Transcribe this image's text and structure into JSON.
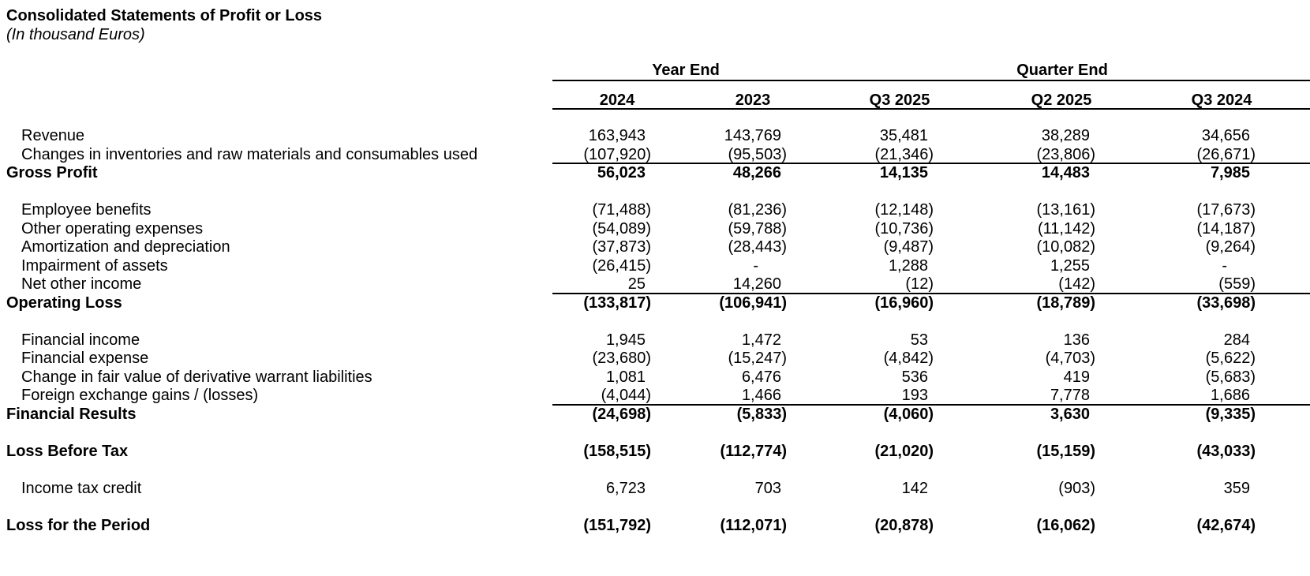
{
  "title": "Consolidated Statements of Profit or Loss",
  "subtitle": "(In thousand Euros)",
  "colors": {
    "text": "#000000",
    "background": "#ffffff",
    "rule": "#000000"
  },
  "table": {
    "column_groups": [
      {
        "label": "Year End",
        "span": 2
      },
      {
        "label": "Quarter End",
        "span": 3
      }
    ],
    "columns": [
      "2024",
      "2023",
      "Q3 2025",
      "Q2 2025",
      "Q3 2024"
    ],
    "rows": [
      {
        "label": "Revenue",
        "values": [
          "163,943",
          "143,769",
          "35,481",
          "38,289",
          "34,656"
        ]
      },
      {
        "label": "Changes in inventories and raw materials and consumables used",
        "values": [
          "(107,920)",
          "(95,503)",
          "(21,346)",
          "(23,806)",
          "(26,671)"
        ],
        "rule_below": true
      },
      {
        "label": "Gross Profit",
        "values": [
          "56,023",
          "48,266",
          "14,135",
          "14,483",
          "7,985"
        ],
        "bold": true
      },
      {
        "spacer": true
      },
      {
        "label": "Employee benefits",
        "values": [
          "(71,488)",
          "(81,236)",
          "(12,148)",
          "(13,161)",
          "(17,673)"
        ]
      },
      {
        "label": "Other operating expenses",
        "values": [
          "(54,089)",
          "(59,788)",
          "(10,736)",
          "(11,142)",
          "(14,187)"
        ]
      },
      {
        "label": "Amortization and depreciation",
        "values": [
          "(37,873)",
          "(28,443)",
          "(9,487)",
          "(10,082)",
          "(9,264)"
        ]
      },
      {
        "label": "Impairment of assets",
        "values": [
          "(26,415)",
          "-",
          "1,288",
          "1,255",
          "-"
        ]
      },
      {
        "label": "Net other income",
        "values": [
          "25",
          "14,260",
          "(12)",
          "(142)",
          "(559)"
        ],
        "rule_below": true
      },
      {
        "label": "Operating Loss",
        "values": [
          "(133,817)",
          "(106,941)",
          "(16,960)",
          "(18,789)",
          "(33,698)"
        ],
        "bold": true
      },
      {
        "spacer": true
      },
      {
        "label": "Financial income",
        "values": [
          "1,945",
          "1,472",
          "53",
          "136",
          "284"
        ]
      },
      {
        "label": "Financial expense",
        "values": [
          "(23,680)",
          "(15,247)",
          "(4,842)",
          "(4,703)",
          "(5,622)"
        ]
      },
      {
        "label": "Change in fair value of derivative warrant liabilities",
        "values": [
          "1,081",
          "6,476",
          "536",
          "419",
          "(5,683)"
        ]
      },
      {
        "label": "Foreign exchange gains / (losses)",
        "values": [
          "(4,044)",
          "1,466",
          "193",
          "7,778",
          "1,686"
        ],
        "rule_below": true
      },
      {
        "label": "Financial Results",
        "values": [
          "(24,698)",
          "(5,833)",
          "(4,060)",
          "3,630",
          "(9,335)"
        ],
        "bold": true
      },
      {
        "spacer": true
      },
      {
        "label": "Loss Before Tax",
        "values": [
          "(158,515)",
          "(112,774)",
          "(21,020)",
          "(15,159)",
          "(43,033)"
        ],
        "bold": true
      },
      {
        "spacer": true
      },
      {
        "label": "Income tax credit",
        "values": [
          "6,723",
          "703",
          "142",
          "(903)",
          "359"
        ]
      },
      {
        "spacer": true
      },
      {
        "label": "Loss for the Period",
        "values": [
          "(151,792)",
          "(112,071)",
          "(20,878)",
          "(16,062)",
          "(42,674)"
        ],
        "bold": true
      }
    ]
  }
}
